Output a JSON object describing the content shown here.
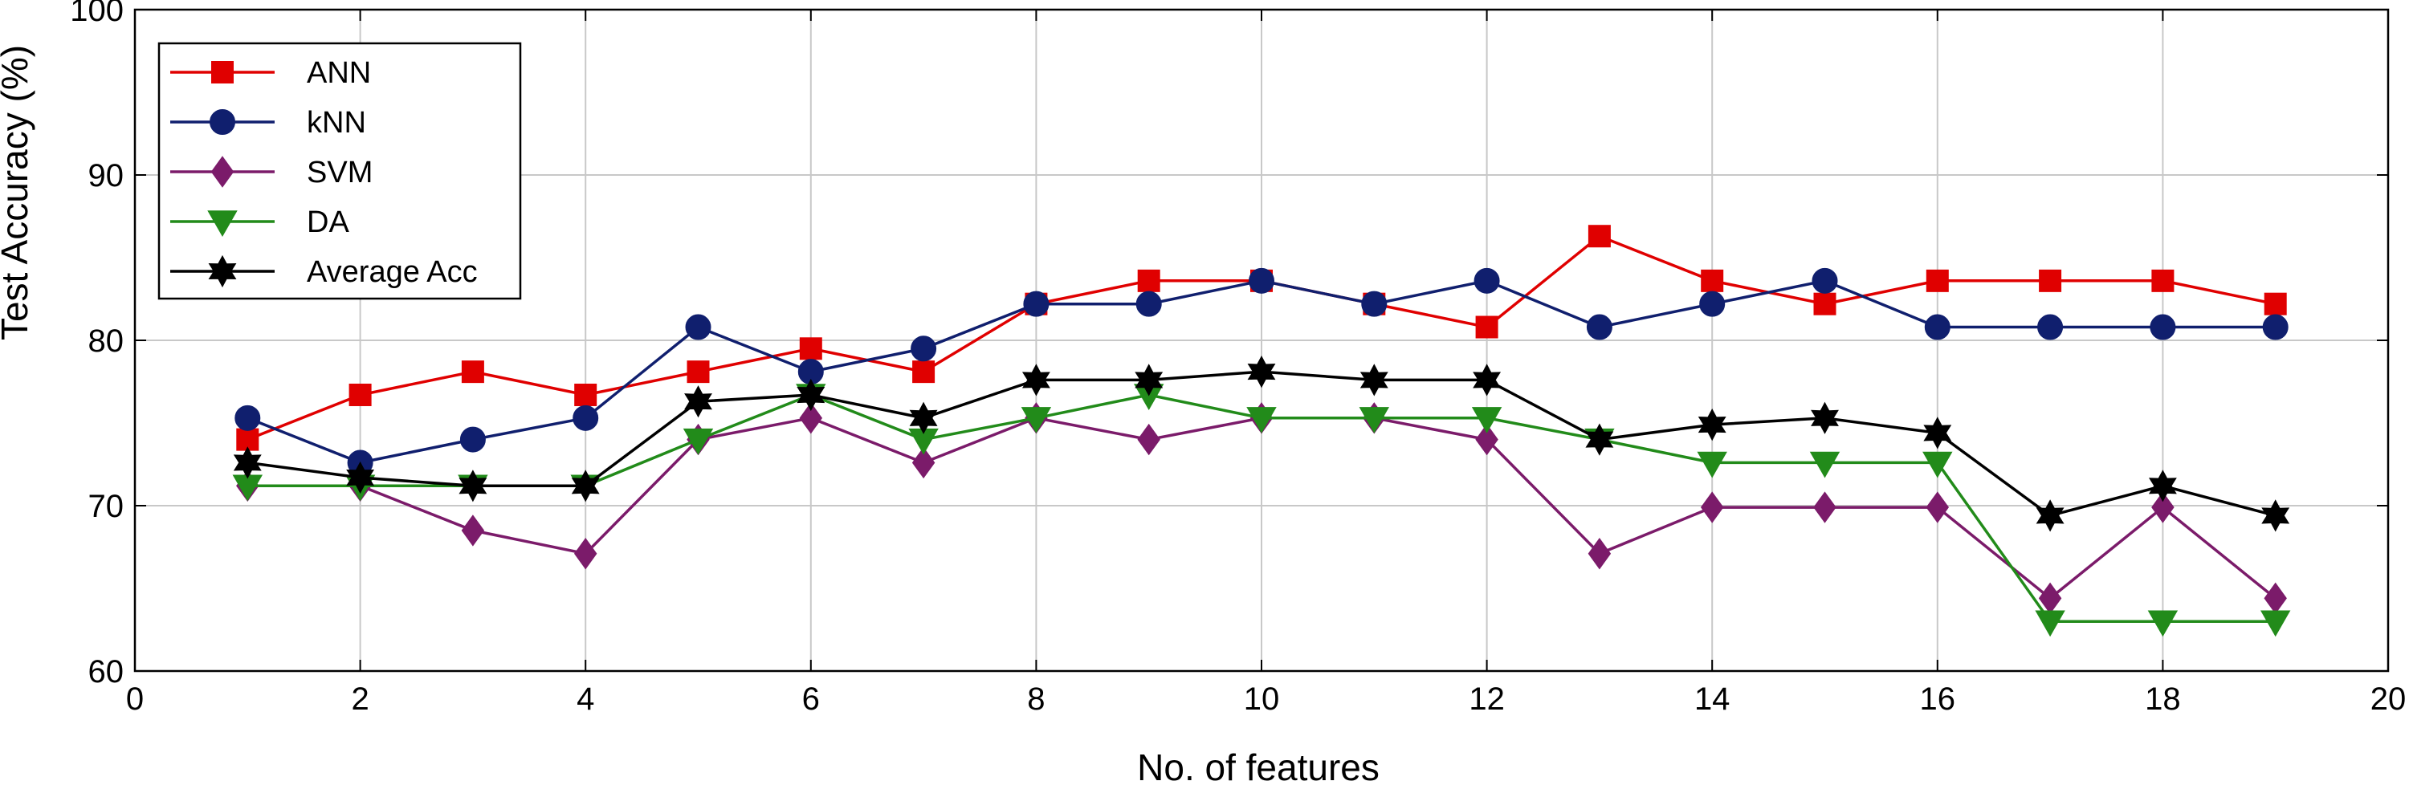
{
  "chart_data": {
    "type": "line",
    "title": "",
    "xlabel": "No. of features",
    "ylabel": "Test Accuracy (%)",
    "xlim": [
      0,
      20
    ],
    "ylim": [
      60,
      100
    ],
    "xticks": [
      0,
      2,
      4,
      6,
      8,
      10,
      12,
      14,
      16,
      18,
      20
    ],
    "yticks": [
      60,
      70,
      80,
      90,
      100
    ],
    "grid": true,
    "legend_position": "top-left",
    "x": [
      1,
      2,
      3,
      4,
      5,
      6,
      7,
      8,
      9,
      10,
      11,
      12,
      13,
      14,
      15,
      16,
      17,
      18,
      19
    ],
    "series": [
      {
        "name": "ANN",
        "color": "#e00000",
        "marker": "square",
        "values": [
          74.0,
          76.7,
          78.1,
          76.7,
          78.1,
          79.5,
          78.1,
          82.2,
          83.6,
          83.6,
          82.2,
          80.8,
          86.3,
          83.6,
          82.2,
          83.6,
          83.6,
          83.6,
          82.2
        ]
      },
      {
        "name": "kNN",
        "color": "#101f6e",
        "marker": "circle",
        "values": [
          75.3,
          72.6,
          74.0,
          75.3,
          80.8,
          78.1,
          79.5,
          82.2,
          82.2,
          83.6,
          82.2,
          83.6,
          80.8,
          82.2,
          83.6,
          80.8,
          80.8,
          80.8,
          80.8
        ]
      },
      {
        "name": "SVM",
        "color": "#7b1b6a",
        "marker": "diamond",
        "values": [
          71.2,
          71.2,
          68.5,
          67.1,
          74.0,
          75.3,
          72.6,
          75.3,
          74.0,
          75.3,
          75.3,
          74.0,
          67.1,
          69.9,
          69.9,
          69.9,
          64.4,
          69.9,
          64.4
        ]
      },
      {
        "name": "DA",
        "color": "#228b1a",
        "marker": "triangle-down",
        "values": [
          71.2,
          71.2,
          71.2,
          71.2,
          74.0,
          76.7,
          74.0,
          75.3,
          76.7,
          75.3,
          75.3,
          75.3,
          74.0,
          72.6,
          72.6,
          72.6,
          63.0,
          63.0,
          63.0
        ]
      },
      {
        "name": "Average Acc",
        "color": "#000000",
        "marker": "hexagram",
        "values": [
          72.6,
          71.7,
          71.2,
          71.2,
          76.3,
          76.7,
          75.3,
          77.6,
          77.6,
          78.1,
          77.6,
          77.6,
          74.0,
          74.9,
          75.3,
          74.4,
          69.4,
          71.2,
          69.4
        ]
      }
    ]
  }
}
